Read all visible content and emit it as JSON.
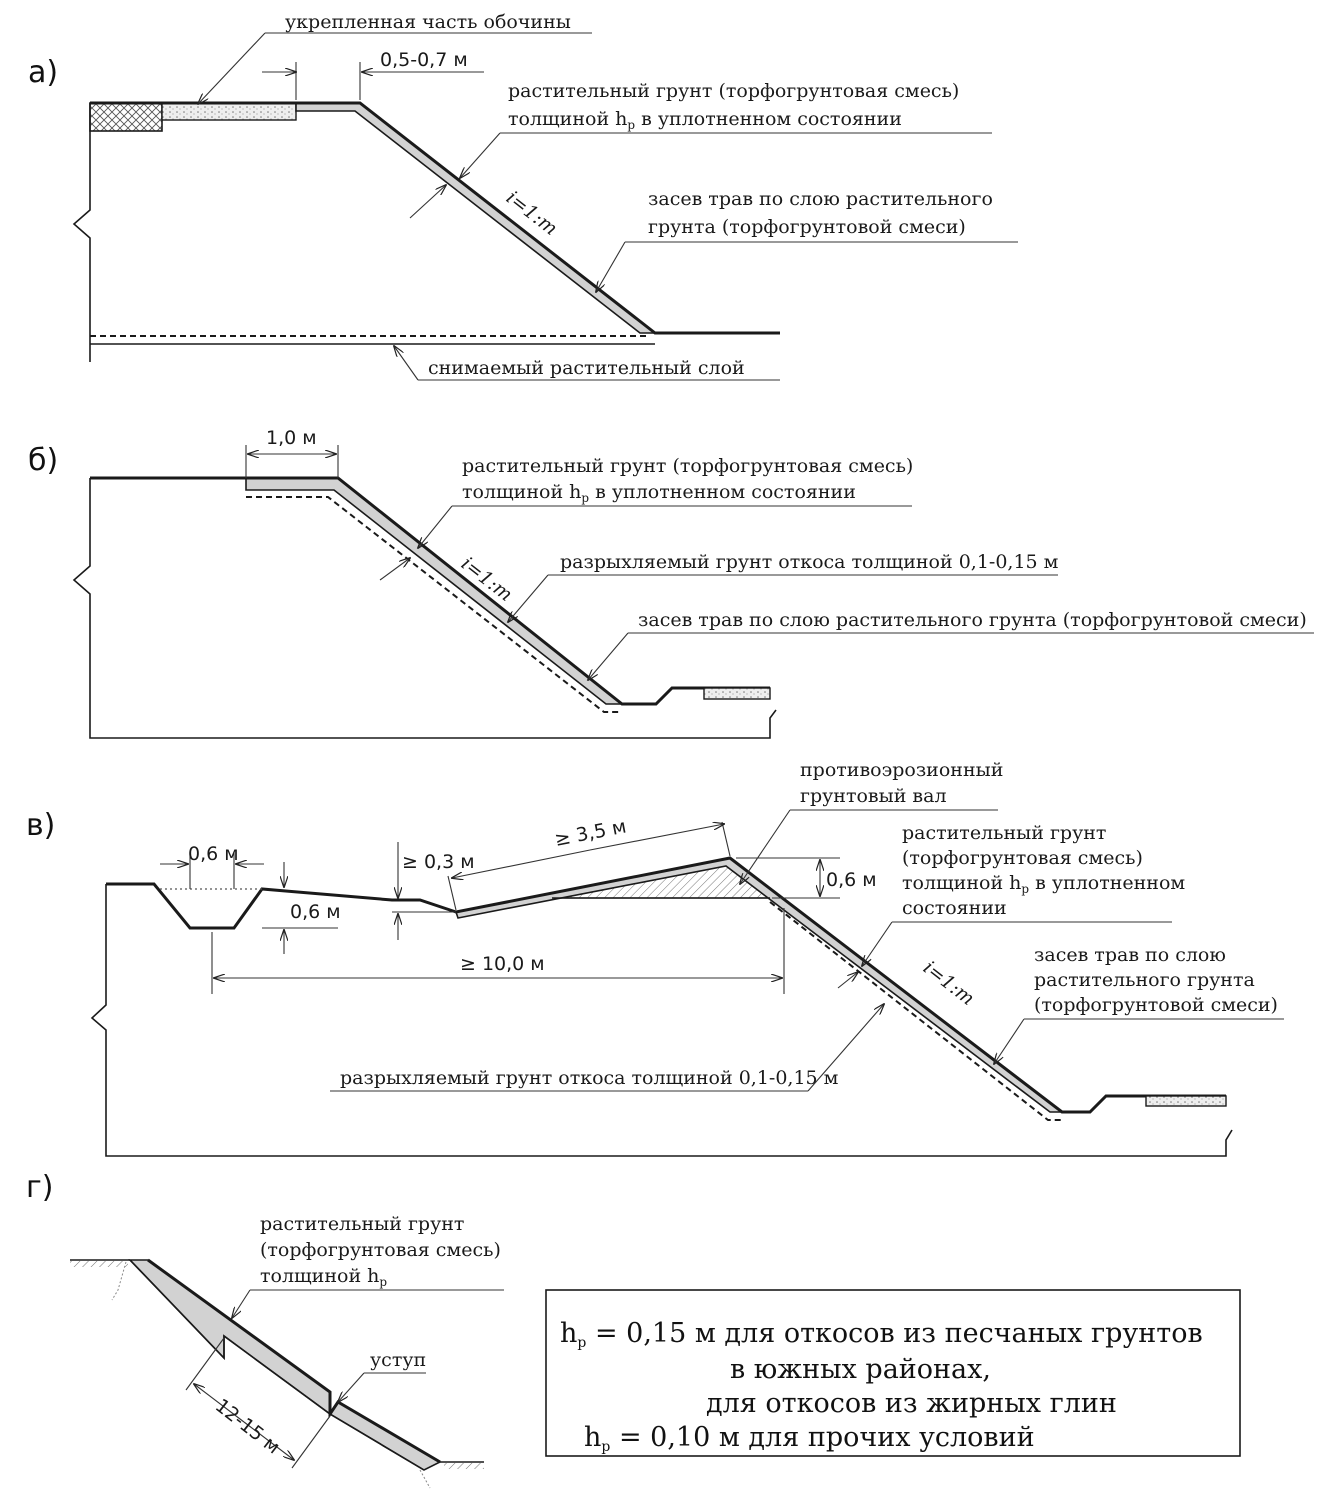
{
  "sections": {
    "a": {
      "letter": "а)",
      "shoulder": "укрепленная часть обочины",
      "dim_width": "0,5-0,7 м",
      "soil_1": "растительный грунт (торфогрунтовая смесь)",
      "soil_2a": "толщиной h",
      "soil_sub": "р",
      "soil_2b": " в уплотненном состоянии",
      "slope": "i=1:m",
      "grass_1": "засев трав по слою растительного",
      "grass_2": "грунта (торфогрунтовой смеси)",
      "removed": "снимаемый растительный слой"
    },
    "b": {
      "letter": "б)",
      "dim_width": "1,0 м",
      "soil_1": "растительный грунт (торфогрунтовая смесь)",
      "soil_2a": "толщиной h",
      "soil_sub": "р",
      "soil_2b": " в уплотненном состоянии",
      "slope": "i=1:m",
      "loosened": "разрыхляемый грунт откоса толщиной 0,1-0,15 м",
      "grass": "засев трав по слою растительного грунта (торфогрунтовой смеси)"
    },
    "c": {
      "letter": "в)",
      "berm_1": "противоэрозионный",
      "berm_2": "грунтовый вал",
      "dim_ditch": "0,6 м",
      "dim_ditch_depth": "0,6 м",
      "dim_min_height": "≥ 0,3 м",
      "dim_berm_len": "≥ 3,5 м",
      "dim_berm_height": "0,6 м",
      "dim_total": "≥ 10,0 м",
      "soil_1": "растительный грунт",
      "soil_2": "(торфогрунтовая смесь)",
      "soil_3a": "толщиной h",
      "soil_sub": "р",
      "soil_3b": " в уплотненном",
      "soil_4": "состоянии",
      "grass_1": "засев трав по слою",
      "grass_2": "растительного грунта",
      "grass_3": "(торфогрунтовой смеси)",
      "slope": "i=1:m",
      "loosened": "разрыхляемый грунт откоса толщиной 0,1-0,15 м"
    },
    "d": {
      "letter": "г)",
      "soil_1": "растительный грунт",
      "soil_2": "(торфогрунтовая смесь)",
      "soil_3": "толщиной h",
      "soil_sub": "р",
      "step": "уступ",
      "dim_step": "12-15 м"
    }
  },
  "note": {
    "h": "h",
    "sub": "р",
    "line1": " = 0,15 м для откосов из песчаных грунтов",
    "line2": "в южных районах,",
    "line3": "для откосов из жирных глин",
    "line4": " = 0,10 м для прочих условий"
  }
}
